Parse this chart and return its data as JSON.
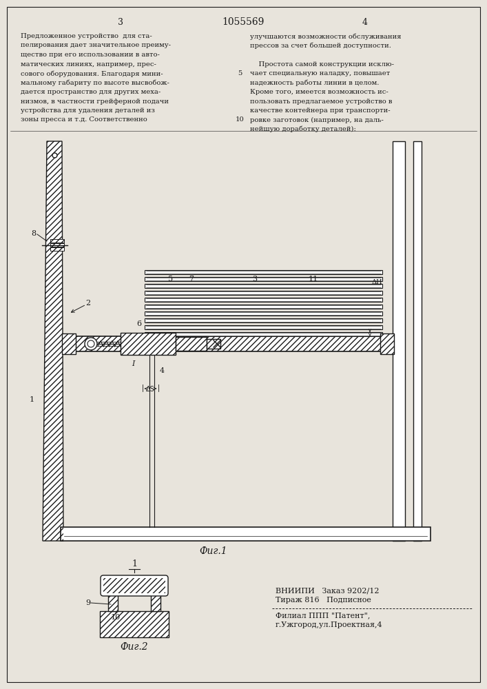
{
  "title": "1055569",
  "bg_color": "#e8e4dc",
  "line_color": "#1a1a1a",
  "fig1_label": "Фиг.1",
  "fig2_label": "Фиг.2",
  "left_lines": [
    "Предложенное устройство  для ста-",
    "пелирования дает значительное преиму-",
    "щество при его использовании в авто-",
    "матических линиях, например, прес-",
    "сового оборудования. Благодаря мини-",
    "мальному габариту по высоте высвобож-",
    "дается пространство для других меха-",
    "низмов, в частности грейферной подачи",
    "устройства для удаления деталей из",
    "зоны пресса и т.д. Соответственно"
  ],
  "right_lines": [
    "улучшаются возможности обслуживания",
    "прессов за счет большей доступности.",
    "",
    "    Простота самой конструкции исклю-",
    "чает специальную наладку, повышает",
    "надежность работы линии в целом.",
    "Кроме того, имеется возможность ис-",
    "пользовать предлагаемое устройство в",
    "качестве контейнера при транспорти-",
    "ровке заготовок (например, на даль-",
    "нейшую доработку деталей):"
  ],
  "footer_line1": "ВНИИПИ   Заказ 9202/12",
  "footer_line2": "Тираж 816   Подписное",
  "footer_line3": "Филиал ППП \"Патент\",",
  "footer_line4": "г.Ужгород,ул.Проектная,4"
}
